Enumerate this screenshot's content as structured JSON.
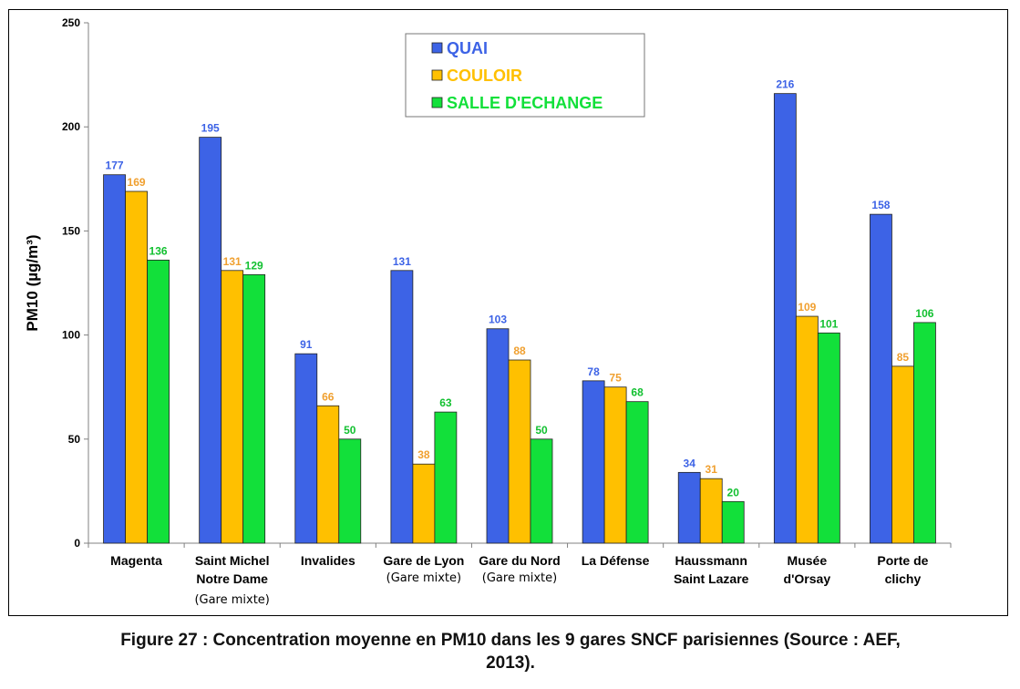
{
  "chart_data": {
    "type": "bar",
    "ylabel": "PM10 (µg/m³)",
    "ylim": [
      0,
      250
    ],
    "yticks": [
      "0",
      "50",
      "100",
      "150",
      "200",
      "250"
    ],
    "categories": [
      {
        "line1": "Magenta",
        "line2": "",
        "tag": ""
      },
      {
        "line1": "Saint Michel",
        "line2": "Notre Dame",
        "tag": "(Gare mixte)"
      },
      {
        "line1": "Invalides",
        "line2": "",
        "tag": ""
      },
      {
        "line1": "Gare de Lyon",
        "line2": "",
        "tag": "(Gare mixte)"
      },
      {
        "line1": "Gare du Nord",
        "line2": "",
        "tag": "(Gare mixte)"
      },
      {
        "line1": "La Défense",
        "line2": "",
        "tag": ""
      },
      {
        "line1": "Haussmann",
        "line2": "Saint Lazare",
        "tag": ""
      },
      {
        "line1": "Musée",
        "line2": "d'Orsay",
        "tag": ""
      },
      {
        "line1": "Porte de",
        "line2": "clichy",
        "tag": ""
      }
    ],
    "series": [
      {
        "name": "QUAI",
        "color": "#3d63e6",
        "label_color": "#3d63e6",
        "values": [
          177,
          195,
          91,
          131,
          103,
          78,
          34,
          216,
          158
        ]
      },
      {
        "name": "COULOIR",
        "color": "#ffc000",
        "label_color": "#f0a030",
        "values": [
          169,
          131,
          66,
          38,
          88,
          75,
          31,
          109,
          85
        ]
      },
      {
        "name": "SALLE D'ECHANGE",
        "color": "#12e03a",
        "label_color": "#12c030",
        "values": [
          136,
          129,
          50,
          63,
          50,
          68,
          20,
          101,
          106
        ]
      }
    ],
    "legend_position": "top-center",
    "grid": false
  },
  "caption": {
    "line1": "Figure 27 : Concentration moyenne en PM10 dans les 9 gares SNCF parisiennes (Source : AEF,",
    "line2": "2013)."
  }
}
